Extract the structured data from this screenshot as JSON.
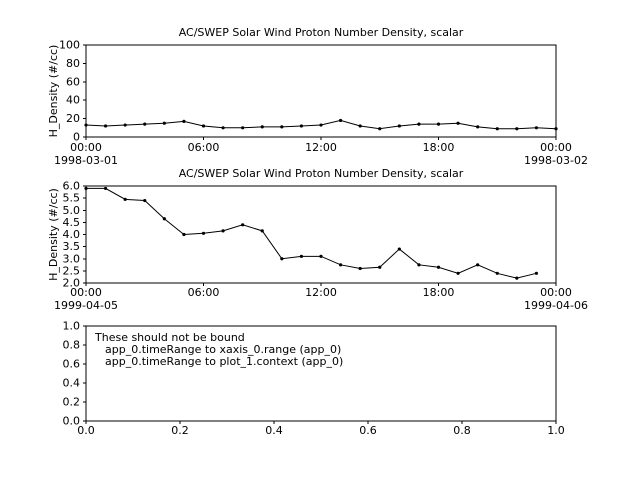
{
  "window": {
    "background": "#ffffff",
    "foreground": "#000000"
  },
  "chart_data": [
    {
      "type": "line",
      "title": "AC/SWEP  Solar Wind Proton Number Density, scalar",
      "ylabel": "H_Density (#/cc)",
      "ylim": [
        0,
        100
      ],
      "yticks": [
        0,
        20,
        40,
        60,
        80,
        100
      ],
      "ytick_labels": [
        "0",
        "20",
        "40",
        "60",
        "80",
        "100"
      ],
      "xlim": [
        0,
        24
      ],
      "xticks": [
        0,
        6,
        12,
        18,
        24
      ],
      "xtick_labels": [
        "00:00",
        "06:00",
        "12:00",
        "18:00",
        "00:00"
      ],
      "x_start_date": "1998-03-01",
      "x_end_date": "1998-03-02",
      "marker": "filled-circle",
      "line_color": "#000000",
      "grid": false,
      "x": [
        0,
        1,
        2,
        3,
        4,
        5,
        6,
        7,
        8,
        9,
        10,
        11,
        12,
        13,
        14,
        15,
        16,
        17,
        18,
        19,
        20,
        21,
        22,
        23,
        24
      ],
      "values": [
        13,
        12,
        13,
        14,
        15,
        17,
        12,
        10,
        10,
        11,
        11,
        12,
        13,
        18,
        12,
        9,
        12,
        14,
        14,
        15,
        11,
        9,
        9,
        10,
        9
      ]
    },
    {
      "type": "line",
      "title": "AC/SWEP  Solar Wind Proton Number Density, scalar",
      "ylabel": "H_Density (#/cc)",
      "ylim": [
        2.0,
        6.0
      ],
      "yticks": [
        2.0,
        2.5,
        3.0,
        3.5,
        4.0,
        4.5,
        5.0,
        5.5,
        6.0
      ],
      "ytick_labels": [
        "2.0",
        "2.5",
        "3.0",
        "3.5",
        "4.0",
        "4.5",
        "5.0",
        "5.5",
        "6.0"
      ],
      "xlim": [
        0,
        24
      ],
      "xticks": [
        0,
        6,
        12,
        18,
        24
      ],
      "xtick_labels": [
        "00:00",
        "06:00",
        "12:00",
        "18:00",
        "00:00"
      ],
      "x_start_date": "1999-04-05",
      "x_end_date": "1999-04-06",
      "marker": "filled-circle",
      "line_color": "#000000",
      "grid": false,
      "x": [
        0,
        1,
        2,
        3,
        4,
        5,
        6,
        7,
        8,
        9,
        10,
        11,
        12,
        13,
        14,
        15,
        16,
        17,
        18,
        19,
        20,
        21,
        22,
        23
      ],
      "values": [
        5.9,
        5.9,
        5.45,
        5.4,
        4.65,
        4.0,
        4.05,
        4.15,
        4.4,
        4.15,
        3.0,
        3.1,
        3.1,
        2.75,
        2.6,
        2.65,
        3.4,
        2.75,
        2.65,
        2.4,
        2.75,
        2.4,
        2.2,
        2.4
      ]
    },
    {
      "type": "line",
      "title": "",
      "ylabel": "",
      "ylim": [
        0.0,
        1.0
      ],
      "yticks": [
        0.0,
        0.2,
        0.4,
        0.6,
        0.8,
        1.0
      ],
      "ytick_labels": [
        "0.0",
        "0.2",
        "0.4",
        "0.6",
        "0.8",
        "1.0"
      ],
      "xlim": [
        0.0,
        1.0
      ],
      "xticks": [
        0.0,
        0.2,
        0.4,
        0.6,
        0.8,
        1.0
      ],
      "xtick_labels": [
        "0.0",
        "0.2",
        "0.4",
        "0.6",
        "0.8",
        "1.0"
      ],
      "grid": false,
      "annotations": [
        "These should not be bound",
        "app_0.timeRange to xaxis_0.range  (app_0)",
        "app_0.timeRange to plot_1.context  (app_0)"
      ]
    }
  ]
}
